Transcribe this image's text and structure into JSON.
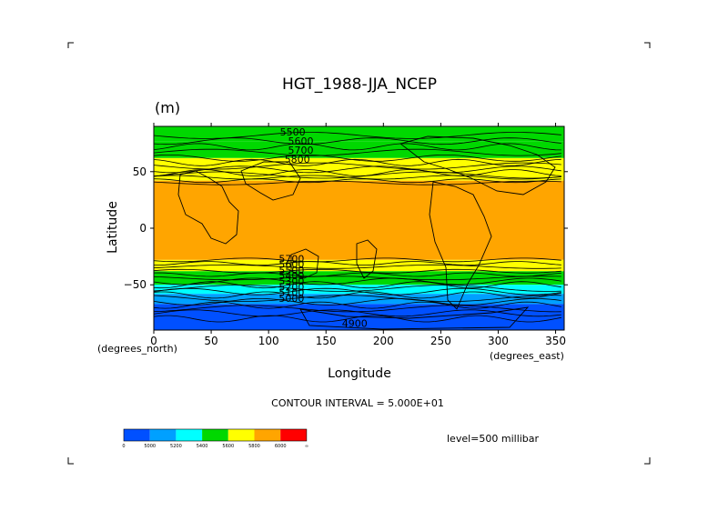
{
  "chart_data": {
    "type": "contour",
    "title": "HGT_1988-JJA_NCEP",
    "units": "(m)",
    "xlabel": "Longitude",
    "ylabel": "Latitude",
    "x_units": "(degrees_east)",
    "y_units": "(degrees_north)",
    "xlim": [
      0,
      357.5
    ],
    "ylim": [
      -90,
      90
    ],
    "x_ticks": [
      0,
      50,
      100,
      150,
      200,
      250,
      300,
      350
    ],
    "y_ticks": [
      50,
      0,
      -50
    ],
    "contour_interval_text": "CONTOUR INTERVAL = 5.000E+01",
    "level_text": "level=500 millibar",
    "contour_labels": [
      "5500",
      "5600",
      "5700",
      "5800",
      "5700",
      "5600",
      "5500",
      "5400",
      "5300",
      "5200",
      "5100",
      "5000",
      "4900"
    ],
    "bands": [
      {
        "lat_from": 90,
        "lat_to": 77,
        "color": "#00d800"
      },
      {
        "lat_from": 77,
        "lat_to": 62,
        "color": "#00d800"
      },
      {
        "lat_from": 62,
        "lat_to": 47,
        "color": "#ffff00"
      },
      {
        "lat_from": 47,
        "lat_to": 42,
        "color": "#ffff00"
      },
      {
        "lat_from": 42,
        "lat_to": -28,
        "color": "#ffa500"
      },
      {
        "lat_from": -28,
        "lat_to": -38,
        "color": "#ffff00"
      },
      {
        "lat_from": -38,
        "lat_to": -50,
        "color": "#00d800"
      },
      {
        "lat_from": -50,
        "lat_to": -58,
        "color": "#00ffff"
      },
      {
        "lat_from": -58,
        "lat_to": -67,
        "color": "#00a0ff"
      },
      {
        "lat_from": -67,
        "lat_to": -90,
        "color": "#0050ff"
      }
    ],
    "colorbar": {
      "colors": [
        "#0050ff",
        "#00a0ff",
        "#00ffff",
        "#00d800",
        "#ffff00",
        "#ffa500",
        "#ff0000"
      ],
      "tick_labels": [
        "0",
        "5000",
        "5200",
        "5400",
        "5600",
        "5800",
        "6000",
        "∞"
      ]
    }
  }
}
